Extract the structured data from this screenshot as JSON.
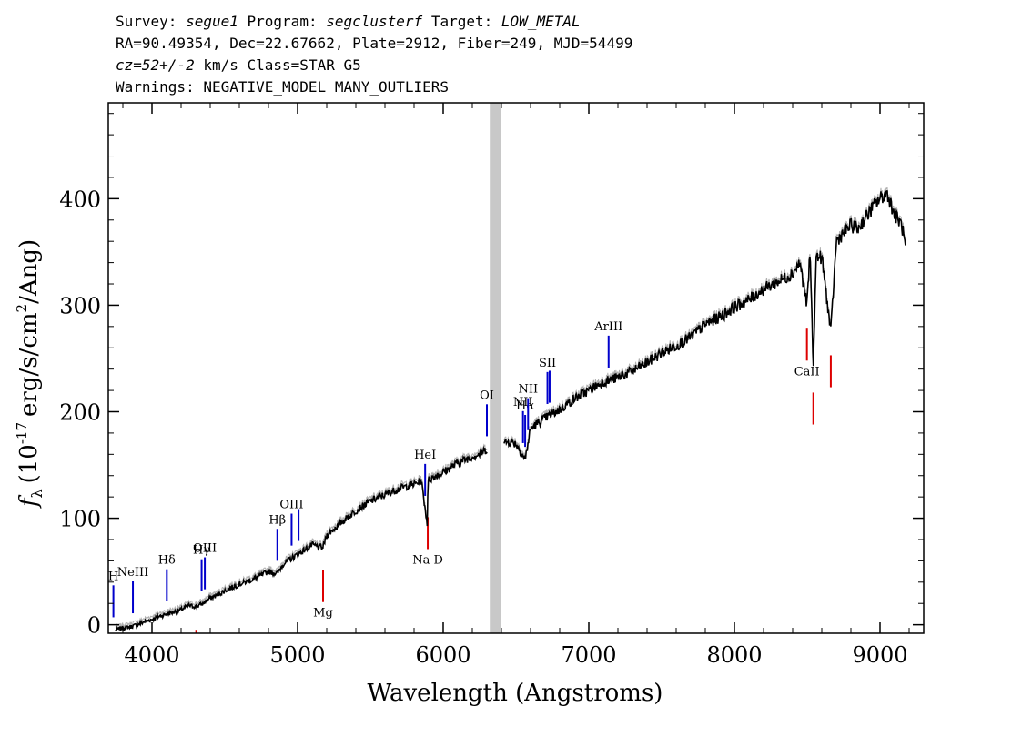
{
  "header": {
    "survey_label": "Survey:",
    "survey": "segue1",
    "program_label": "Program:",
    "program": "segclusterf",
    "target_label": "Target:",
    "target": "LOW_METAL",
    "line2": "RA=90.49354, Dec=22.67662, Plate=2912, Fiber=249, MJD=54499",
    "cz": "cz=52+/-2",
    "cz_rest": "km/s Class=STAR G5",
    "line4": "Warnings: NEGATIVE_MODEL MANY_OUTLIERS"
  },
  "chart_data": {
    "type": "line",
    "xlabel": "Wavelength (Angstroms)",
    "ylabel_symbol": "f",
    "ylabel_subscript": "λ",
    "ylabel_open": "(10",
    "ylabel_exp1": "-17",
    "ylabel_mid": "erg/s/cm",
    "ylabel_exp2": "2",
    "ylabel_close": "/Ang)",
    "xlim": [
      3700,
      9300
    ],
    "ylim": [
      -8,
      490
    ],
    "xticks": [
      4000,
      5000,
      6000,
      7000,
      8000,
      9000
    ],
    "yticks": [
      0,
      100,
      200,
      300,
      400
    ],
    "grid": false,
    "masked_region": [
      6320,
      6400
    ],
    "colors": {
      "spectrum": "#000000",
      "noise": "#b0b0b0",
      "mask": "#c8c8c8",
      "emission": "#0000cc",
      "absorption": "#dd0000"
    },
    "series": [
      {
        "x": [
          3750,
          3800,
          3850,
          3900,
          3950,
          4000,
          4050,
          4100,
          4150,
          4200,
          4250,
          4300,
          4350,
          4400,
          4450,
          4500,
          4600,
          4700,
          4800,
          4861,
          4900,
          5000,
          5100,
          5172,
          5200,
          5300,
          5400,
          5500,
          5600,
          5700,
          5800,
          5850,
          5890,
          5895,
          5900,
          5950,
          6000,
          6100,
          6200,
          6250,
          6300,
          6450,
          6500,
          6563,
          6600,
          6700,
          6800,
          6900,
          7000,
          7100,
          7200,
          7300,
          7400,
          7500,
          7600,
          7700,
          7800,
          7900,
          8000,
          8100,
          8200,
          8300,
          8400,
          8450,
          8498,
          8520,
          8542,
          8560,
          8600,
          8662,
          8700,
          8750,
          8800,
          8850,
          8900,
          8950,
          9000,
          9050,
          9100,
          9150,
          9180
        ],
        "y": [
          -5,
          -3,
          -2,
          0,
          3,
          5,
          8,
          10,
          12,
          14,
          18,
          17,
          20,
          25,
          28,
          32,
          38,
          43,
          50,
          48,
          57,
          66,
          75,
          72,
          84,
          96,
          107,
          116,
          122,
          128,
          132,
          135,
          95,
          130,
          136,
          140,
          143,
          152,
          158,
          160,
          165,
          172,
          170,
          155,
          184,
          194,
          202,
          212,
          220,
          228,
          232,
          238,
          246,
          255,
          262,
          270,
          282,
          289,
          298,
          305,
          315,
          322,
          330,
          340,
          300,
          350,
          240,
          345,
          345,
          275,
          360,
          368,
          375,
          372,
          382,
          392,
          400,
          405,
          385,
          375,
          350
        ]
      }
    ],
    "lines": [
      {
        "label": "H",
        "x": 3735,
        "kind": "emission"
      },
      {
        "label": "NeIII",
        "x": 3869,
        "kind": "emission"
      },
      {
        "label": "Hδ",
        "x": 4102,
        "kind": "emission"
      },
      {
        "label": "Hγ",
        "x": 4341,
        "kind": "emission"
      },
      {
        "label": "OIII",
        "x": 4363,
        "kind": "emission"
      },
      {
        "label": "Hβ",
        "x": 4861,
        "kind": "emission"
      },
      {
        "label": "OIII",
        "x": 4959,
        "kind": "emission"
      },
      {
        "label": "",
        "x": 5007,
        "kind": "emission"
      },
      {
        "label": "HeI",
        "x": 5876,
        "kind": "emission"
      },
      {
        "label": "OI",
        "x": 6300,
        "kind": "emission"
      },
      {
        "label": "NII",
        "x": 6548,
        "kind": "emission"
      },
      {
        "label": "Hα",
        "x": 6563,
        "kind": "emission"
      },
      {
        "label": "NII",
        "x": 6583,
        "kind": "emission"
      },
      {
        "label": "SII",
        "x": 6716,
        "kind": "emission"
      },
      {
        "label": "",
        "x": 6731,
        "kind": "emission"
      },
      {
        "label": "ArIII",
        "x": 7136,
        "kind": "emission"
      },
      {
        "label": "",
        "x": 4304,
        "kind": "absorption"
      },
      {
        "label": "Mg",
        "x": 5175,
        "kind": "absorption"
      },
      {
        "label": "Na D",
        "x": 5894,
        "kind": "absorption"
      },
      {
        "label": "CaII",
        "x": 8498,
        "kind": "absorption"
      },
      {
        "label": "",
        "x": 8542,
        "kind": "absorption"
      },
      {
        "label": "",
        "x": 8662,
        "kind": "absorption"
      }
    ]
  }
}
